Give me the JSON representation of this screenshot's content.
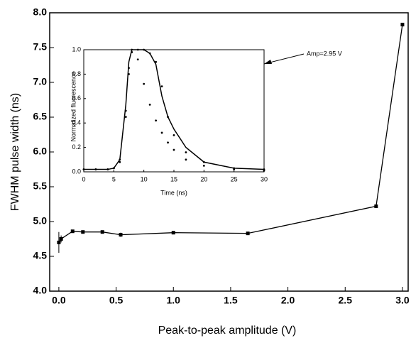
{
  "chart_data": [
    {
      "type": "line",
      "x_label": "Peak-to-peak amplitude (V)",
      "y_label": "FWHM pulse width (ns)",
      "x": [
        0.0,
        0.02,
        0.12,
        0.21,
        0.38,
        0.54,
        1.0,
        1.65,
        2.77,
        3.0
      ],
      "values": [
        4.7,
        4.75,
        4.86,
        4.85,
        4.85,
        4.81,
        4.84,
        4.83,
        5.22,
        7.83
      ],
      "errors": [
        0.15,
        0.05,
        0.02,
        0.02,
        0.02,
        0.03,
        0.02,
        0.02,
        0.02,
        0.02
      ],
      "color": "#000000",
      "xlim": [
        -0.08,
        3.05
      ],
      "ylim": [
        4.0,
        8.0
      ],
      "xticks": [
        {
          "value": 0,
          "label": "0.0"
        },
        0.5,
        {
          "value": 1,
          "label": "1.0"
        },
        1.5,
        {
          "value": 2,
          "label": "2.0"
        },
        2.5,
        {
          "value": 3,
          "label": "3.0"
        }
      ],
      "yticks": [
        {
          "value": 4,
          "label": "4.0"
        },
        4.5,
        {
          "value": 5,
          "label": "5.0"
        },
        5.5,
        {
          "value": 6,
          "label": "6.0"
        },
        6.5,
        {
          "value": 7,
          "label": "7.0"
        },
        7.5,
        {
          "value": 8,
          "label": "8.0"
        }
      ]
    },
    {
      "type": "scatter-line",
      "x_label": "Time (ns)",
      "y_label": "Normalized fluorescence",
      "annotation": "Amp=2.95 V",
      "x": [
        0,
        2,
        4,
        5,
        6,
        7,
        7.5,
        8,
        9,
        10,
        11,
        12,
        13,
        14,
        15,
        17,
        20,
        25,
        30
      ],
      "series": [
        {
          "style": "dots",
          "color": "#000000",
          "values": [
            0.02,
            0.02,
            0.02,
            0.03,
            0.1,
            0.5,
            0.85,
            1.0,
            0.92,
            0.72,
            0.55,
            0.42,
            0.32,
            0.24,
            0.18,
            0.1,
            0.05,
            0.02,
            0.01
          ]
        },
        {
          "style": "dots",
          "color": "#000000",
          "values": [
            0.02,
            0.02,
            0.02,
            0.03,
            0.08,
            0.45,
            0.8,
            0.98,
            1.0,
            1.0,
            0.97,
            0.9,
            0.7,
            0.45,
            0.3,
            0.16,
            0.08,
            0.03,
            0.02
          ]
        },
        {
          "style": "line",
          "color": "#000000",
          "values": [
            0.02,
            0.02,
            0.02,
            0.03,
            0.1,
            0.55,
            0.9,
            1.0,
            1.0,
            1.0,
            0.97,
            0.88,
            0.62,
            0.45,
            0.35,
            0.2,
            0.08,
            0.03,
            0.02
          ]
        }
      ],
      "xlim": [
        0,
        30
      ],
      "ylim": [
        0,
        1.0
      ],
      "xticks": [
        0,
        5,
        10,
        15,
        20,
        25,
        30
      ],
      "yticks": [
        {
          "value": 0,
          "label": "0.0"
        },
        0.2,
        0.4,
        0.6,
        0.8,
        {
          "value": 1,
          "label": "1.0"
        }
      ]
    }
  ]
}
